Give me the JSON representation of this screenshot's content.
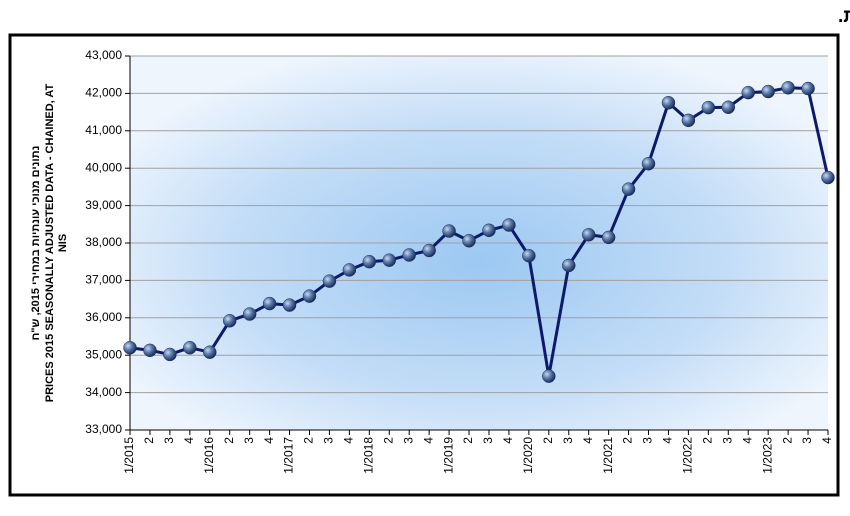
{
  "chart_data": {
    "type": "line",
    "title": "תוצר מקומי גולמי לנפש - נתונים מנוכי עונתיות.",
    "ylabel": [
      "נתונים מנוכי עונתיות במחירי 2015, ש\"ח",
      "PRICES 2015 SEASONALLY ADJUSTED DATA - CHAINED, AT",
      "NIS"
    ],
    "categories": [
      "1/2015",
      "2",
      "3",
      "4",
      "1/2016",
      "2",
      "3",
      "4",
      "1/2017",
      "2",
      "3",
      "4",
      "1/2018",
      "2",
      "3",
      "4",
      "1/2019",
      "2",
      "3",
      "4",
      "1/2020",
      "2",
      "3",
      "4",
      "1/2021",
      "2",
      "3",
      "4",
      "1/2022",
      "2",
      "3",
      "4",
      "1/2023",
      "2",
      "3",
      "4"
    ],
    "series": [
      {
        "color": "#0d1a6b",
        "values": [
          35200,
          35130,
          35020,
          35200,
          35080,
          35920,
          36100,
          36380,
          36340,
          36580,
          36980,
          37280,
          37500,
          37540,
          37680,
          37800,
          38320,
          38060,
          38340,
          38480,
          37660,
          34440,
          37400,
          38220,
          38150,
          39440,
          40120,
          41750,
          41280,
          41620,
          41630,
          42020,
          42050,
          42150,
          42130,
          39750
        ]
      }
    ],
    "ylim": [
      33000,
      43000
    ],
    "yticks": [
      {
        "value": 33000,
        "label": "33,000"
      },
      {
        "value": 34000,
        "label": "34,000"
      },
      {
        "value": 35000,
        "label": "35,000"
      },
      {
        "value": 36000,
        "label": "36,000"
      },
      {
        "value": 37000,
        "label": "37,000"
      },
      {
        "value": 38000,
        "label": "38,000"
      },
      {
        "value": 39000,
        "label": "39,000"
      },
      {
        "value": 40000,
        "label": "40,000"
      },
      {
        "value": 41000,
        "label": "41,000"
      },
      {
        "value": 42000,
        "label": "42,000"
      },
      {
        "value": 43000,
        "label": "43,000"
      }
    ],
    "grid": true
  }
}
